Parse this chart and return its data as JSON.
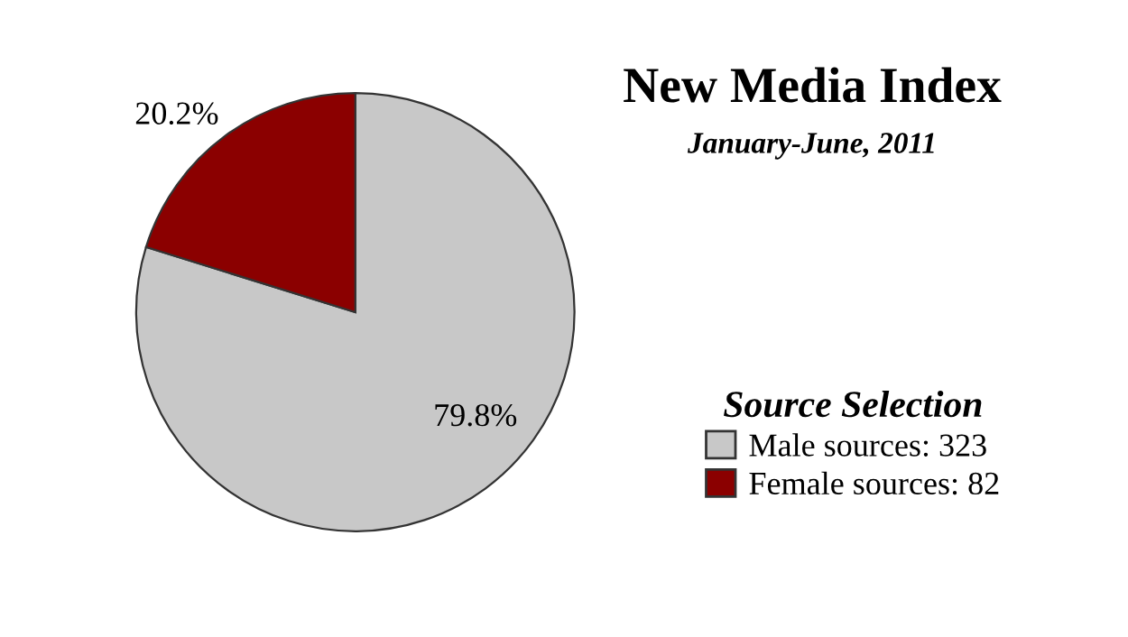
{
  "chart_data": {
    "type": "pie",
    "title": "New Media Index",
    "subtitle": "January-June, 2011",
    "legend_title": "Source Selection",
    "categories": [
      "Male sources: 323",
      "Female sources: 82"
    ],
    "values": [
      79.8,
      20.2
    ],
    "colors": [
      "#c8c8c8",
      "#8b0000"
    ],
    "value_labels": [
      "79.8%",
      "20.2%"
    ],
    "legend": "right"
  }
}
